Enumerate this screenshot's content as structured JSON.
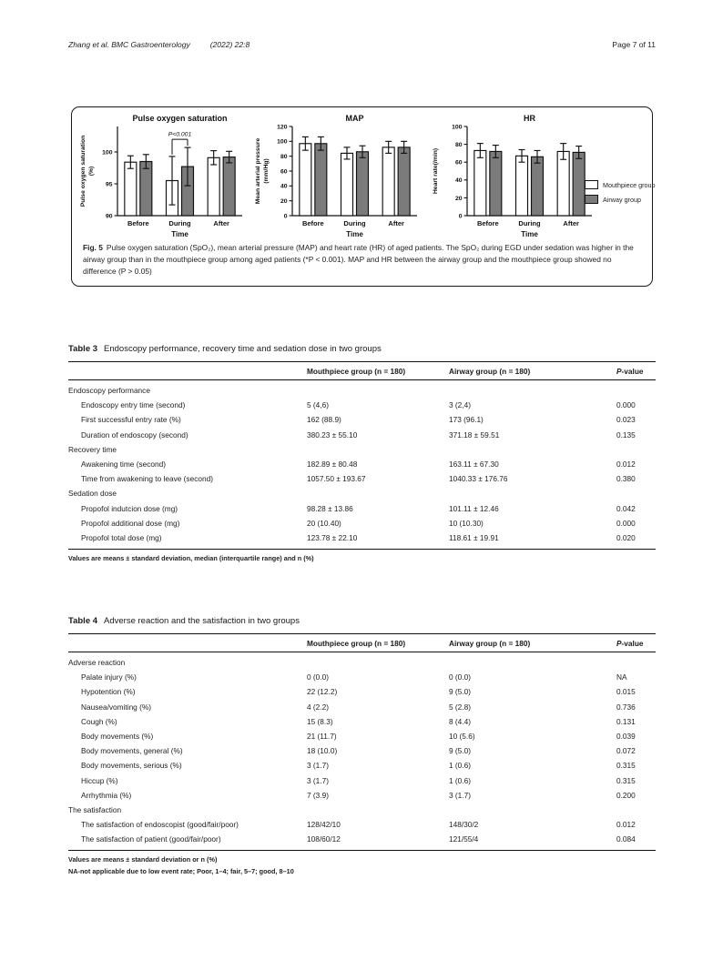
{
  "header": {
    "journal_ref": "Zhang et al. BMC Gastroenterology",
    "citation": "(2022) 22:8",
    "page_label": "Page 7 of 11"
  },
  "figure": {
    "fig_label": "Fig. 5",
    "caption": "Pulse oxygen saturation (SpO₂), mean arterial pressure (MAP) and heart rate (HR) of aged patients. The SpO₂ during EGD under sedation was higher in the airway group than in the mouthpiece group among aged patients (*P < 0.001). MAP and HR between the airway group and the mouthpiece group showed no difference (P > 0.05)",
    "legend": {
      "items": [
        {
          "label": "Mouthpiece group",
          "color": "#ffffff"
        },
        {
          "label": "Airway group",
          "color": "#7b7b7b"
        }
      ]
    }
  },
  "chart_data": [
    {
      "type": "bar",
      "title": "Pulse oxygen saturation",
      "ylabel_lines": [
        "Pulse oxygen saturation",
        "(%)"
      ],
      "xlabel": "Time",
      "categories": [
        "Before",
        "During",
        "After"
      ],
      "ylim": [
        90,
        104
      ],
      "yticks": [
        90,
        95,
        100
      ],
      "grid": false,
      "series": [
        {
          "name": "Mouthpiece group",
          "color": "#ffffff",
          "values": [
            98.4,
            95.5,
            99.1
          ],
          "errors": [
            1.0,
            3.8,
            1.1
          ]
        },
        {
          "name": "Airway group",
          "color": "#7b7b7b",
          "values": [
            98.5,
            97.7,
            99.2
          ],
          "errors": [
            1.1,
            3.0,
            0.9
          ]
        }
      ],
      "annotation": {
        "text": "P<0.001",
        "category_index": 1
      }
    },
    {
      "type": "bar",
      "title": "MAP",
      "ylabel_lines": [
        "Mean arterial pressure",
        "(mm/Hg)"
      ],
      "xlabel": "Time",
      "categories": [
        "Before",
        "During",
        "After"
      ],
      "ylim": [
        0,
        120
      ],
      "yticks": [
        0,
        20,
        40,
        60,
        80,
        100,
        120
      ],
      "grid": false,
      "series": [
        {
          "name": "Mouthpiece group",
          "color": "#ffffff",
          "values": [
            97,
            84,
            92
          ],
          "errors": [
            9,
            8,
            8
          ]
        },
        {
          "name": "Airway group",
          "color": "#7b7b7b",
          "values": [
            97,
            86,
            92
          ],
          "errors": [
            9,
            8,
            8
          ]
        }
      ]
    },
    {
      "type": "bar",
      "title": "HR",
      "ylabel_lines": [
        "Heart rate(/min)"
      ],
      "xlabel": "Time",
      "categories": [
        "Before",
        "During",
        "After"
      ],
      "ylim": [
        0,
        100
      ],
      "yticks": [
        0,
        20,
        40,
        60,
        80,
        100
      ],
      "grid": false,
      "series": [
        {
          "name": "Mouthpiece group",
          "color": "#ffffff",
          "values": [
            73,
            67,
            72
          ],
          "errors": [
            8,
            7,
            9
          ]
        },
        {
          "name": "Airway group",
          "color": "#7b7b7b",
          "values": [
            72,
            66,
            71
          ],
          "errors": [
            7,
            7,
            7
          ]
        }
      ]
    }
  ],
  "table3": {
    "label": "Table 3",
    "title": "Endoscopy performance, recovery time and sedation dose in two groups",
    "columns": {
      "group1": "Mouthpiece group (n = 180)",
      "group2": "Airway group (n = 180)",
      "p_italic": "P",
      "p_rest": "-value"
    },
    "rows": [
      {
        "label": "Endoscopy performance",
        "section": true
      },
      {
        "label": "Endoscopy entry time (second)",
        "m": "5 (4,6)",
        "a": "3 (2,4)",
        "p": "0.000"
      },
      {
        "label": "First successful entry rate (%)",
        "m": "162 (88.9)",
        "a": "173 (96.1)",
        "p": "0.023"
      },
      {
        "label": "Duration of endoscopy (second)",
        "m": "380.23 ± 55.10",
        "a": "371.18 ± 59.51",
        "p": "0.135"
      },
      {
        "label": "Recovery time",
        "section": true
      },
      {
        "label": "Awakening time (second)",
        "m": "182.89 ± 80.48",
        "a": "163.11 ± 67.30",
        "p": "0.012"
      },
      {
        "label": "Time from awakening to leave (second)",
        "m": "1057.50 ± 193.67",
        "a": "1040.33 ± 176.76",
        "p": "0.380"
      },
      {
        "label": "Sedation dose",
        "section": true
      },
      {
        "label": "Propofol indutcion dose (mg)",
        "m": "98.28 ± 13.86",
        "a": "101.11 ± 12.46",
        "p": "0.042"
      },
      {
        "label": "Propofol additional dose (mg)",
        "m": "20 (10.40)",
        "a": "10 (10.30)",
        "p": "0.000"
      },
      {
        "label": "Propofol total dose (mg)",
        "m": "123.78 ± 22.10",
        "a": "118.61 ± 19.91",
        "p": "0.020"
      }
    ],
    "footnotes": [
      "Values are means ± standard deviation, median (interquartile range) and n (%)"
    ]
  },
  "table4": {
    "label": "Table 4",
    "title": "Adverse reaction and the satisfaction in two groups",
    "columns": {
      "group1": "Mouthpiece group (n = 180)",
      "group2": "Airway group (n = 180)",
      "p_italic": "P",
      "p_rest": "-value"
    },
    "rows": [
      {
        "label": "Adverse reaction",
        "section": true
      },
      {
        "label": "Palate injury (%)",
        "m": "0 (0.0)",
        "a": "0 (0.0)",
        "p": "NA"
      },
      {
        "label": "Hypotention (%)",
        "m": "22 (12.2)",
        "a": "9 (5.0)",
        "p": "0.015"
      },
      {
        "label": "Nausea/vomiting (%)",
        "m": "4 (2.2)",
        "a": "5 (2.8)",
        "p": "0.736"
      },
      {
        "label": "Cough (%)",
        "m": "15 (8.3)",
        "a": "8 (4.4)",
        "p": "0.131"
      },
      {
        "label": "Body movements (%)",
        "m": "21 (11.7)",
        "a": "10 (5.6)",
        "p": "0.039"
      },
      {
        "label": "Body movements, general (%)",
        "m": "18 (10.0)",
        "a": "9 (5.0)",
        "p": "0.072"
      },
      {
        "label": "Body movements, serious (%)",
        "m": "3 (1.7)",
        "a": "1 (0.6)",
        "p": "0.315"
      },
      {
        "label": "Hiccup (%)",
        "m": "3 (1.7)",
        "a": "1 (0.6)",
        "p": "0.315"
      },
      {
        "label": "Arrhythmia (%)",
        "m": "7 (3.9)",
        "a": "3 (1.7)",
        "p": "0.200"
      },
      {
        "label": "The satisfaction",
        "section": true
      },
      {
        "label": "The satisfaction of endoscopist (good/fair/poor)",
        "m": "128/42/10",
        "a": "148/30/2",
        "p": "0.012"
      },
      {
        "label": "The satisfaction of patient (good/fair/poor)",
        "m": "108/60/12",
        "a": "121/55/4",
        "p": "0.084"
      }
    ],
    "footnotes": [
      "Values are means ± standard deviation or n (%)",
      "NA-not applicable due to low event rate; Poor, 1–4; fair, 5–7; good, 8–10"
    ]
  },
  "colors": {
    "bar_fill_mouthpiece": "#ffffff",
    "bar_fill_airway": "#7b7b7b",
    "axis_and_text": "#111111"
  }
}
